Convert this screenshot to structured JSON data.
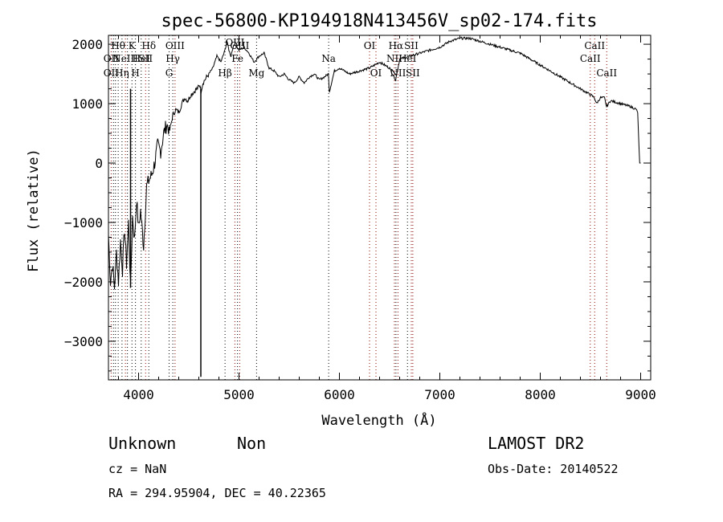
{
  "chart_data": {
    "type": "line",
    "title": "spec-56800-KP194918N413456V_sp02-174.fits",
    "xlabel": "Wavelength (Å)",
    "ylabel": "Flux (relative)",
    "xlim": [
      3700,
      9100
    ],
    "ylim": [
      -3650,
      2150
    ],
    "xticks": [
      4000,
      5000,
      6000,
      7000,
      8000,
      9000
    ],
    "yticks": [
      -3000,
      -2000,
      -1000,
      0,
      1000,
      2000
    ],
    "xtick_labels": [
      "4000",
      "5000",
      "6000",
      "7000",
      "8000",
      "9000"
    ],
    "ytick_labels": [
      "−3000",
      "−2000",
      "−1000",
      "0",
      "1000",
      "2000"
    ],
    "series": [
      {
        "color": "#000000",
        "x": [
          3700,
          3720,
          3740,
          3760,
          3780,
          3800,
          3820,
          3840,
          3860,
          3880,
          3900,
          3920,
          3940,
          3960,
          3980,
          4000,
          4020,
          4050,
          4080,
          4100,
          4130,
          4160,
          4190,
          4220,
          4250,
          4280,
          4310,
          4340,
          4370,
          4400,
          4430,
          4460,
          4490,
          4520,
          4550,
          4580,
          4600,
          4610,
          4615,
          4620,
          4640,
          4660,
          4700,
          4740,
          4780,
          4820,
          4860,
          4880,
          4900,
          4920,
          4940,
          4960,
          4980,
          5000,
          5050,
          5100,
          5150,
          5200,
          5250,
          5300,
          5350,
          5400,
          5450,
          5500,
          5550,
          5600,
          5650,
          5700,
          5750,
          5800,
          5850,
          5890,
          5900,
          5950,
          6000,
          6100,
          6200,
          6300,
          6400,
          6500,
          6560,
          6600,
          6700,
          6800,
          6900,
          7000,
          7100,
          7200,
          7300,
          7400,
          7500,
          7600,
          7700,
          7800,
          7900,
          8000,
          8100,
          8200,
          8300,
          8400,
          8500,
          8540,
          8560,
          8600,
          8640,
          8660,
          8700,
          8800,
          8900,
          8960,
          8970,
          8990,
          9000
        ],
        "y": [
          -1200,
          -2000,
          -1700,
          -2100,
          -1500,
          -2000,
          -1300,
          -1800,
          -1100,
          -1700,
          -1000,
          -2100,
          -900,
          -1300,
          -600,
          -1100,
          -800,
          -1400,
          -400,
          -300,
          -200,
          0,
          300,
          200,
          500,
          650,
          550,
          800,
          900,
          850,
          1000,
          1100,
          1050,
          1150,
          1200,
          1250,
          1280,
          1300,
          1300,
          1200,
          1350,
          1400,
          1500,
          1600,
          1800,
          1700,
          1900,
          2050,
          1900,
          1800,
          1950,
          2000,
          1950,
          1900,
          1950,
          1850,
          1700,
          1800,
          1850,
          1600,
          1550,
          1450,
          1500,
          1400,
          1350,
          1450,
          1350,
          1450,
          1500,
          1400,
          1450,
          1500,
          1200,
          1550,
          1600,
          1500,
          1550,
          1600,
          1700,
          1600,
          1400,
          1750,
          1800,
          1850,
          1900,
          1950,
          2050,
          2100,
          2100,
          2050,
          2000,
          1950,
          1900,
          1850,
          1750,
          1650,
          1550,
          1450,
          1350,
          1250,
          1150,
          1100,
          1000,
          1100,
          1100,
          950,
          1050,
          1000,
          950,
          900,
          850,
          0,
          0
        ]
      }
    ],
    "dips": [
      {
        "x": 4620,
        "y": -3600
      },
      {
        "x": 3920,
        "y": -2100
      }
    ],
    "lines": [
      {
        "x": 3727,
        "color": "#8b0000",
        "labels": [
          {
            "text": "OII",
            "row": 2
          },
          {
            "text": "OII",
            "row": 3
          }
        ]
      },
      {
        "x": 3750,
        "color": "#000000",
        "labels": []
      },
      {
        "x": 3770,
        "color": "#000000",
        "labels": []
      },
      {
        "x": 3797,
        "color": "#000000",
        "labels": [
          {
            "text": "Hθ",
            "row": 1
          }
        ]
      },
      {
        "x": 3835,
        "color": "#000000",
        "labels": [
          {
            "text": "Hη",
            "row": 3
          }
        ]
      },
      {
        "x": 3869,
        "color": "#8b0000",
        "labels": [
          {
            "text": "NeIII",
            "row": 2
          }
        ]
      },
      {
        "x": 3889,
        "color": "#000000",
        "labels": []
      },
      {
        "x": 3934,
        "color": "#000000",
        "labels": [
          {
            "text": "K",
            "row": 1
          }
        ]
      },
      {
        "x": 3969,
        "color": "#000000",
        "labels": [
          {
            "text": "H",
            "row": 3
          }
        ]
      },
      {
        "x": 4026,
        "color": "#000000",
        "labels": [
          {
            "text": "HeI",
            "row": 2
          }
        ]
      },
      {
        "x": 4070,
        "color": "#8b0000",
        "labels": [
          {
            "text": "SII",
            "row": 2
          }
        ]
      },
      {
        "x": 4102,
        "color": "#000000",
        "labels": [
          {
            "text": "Hδ",
            "row": 1
          }
        ]
      },
      {
        "x": 4304,
        "color": "#000000",
        "labels": [
          {
            "text": "G",
            "row": 3
          }
        ]
      },
      {
        "x": 4341,
        "color": "#000000",
        "labels": [
          {
            "text": "Hγ",
            "row": 2
          }
        ]
      },
      {
        "x": 4363,
        "color": "#8b0000",
        "labels": [
          {
            "text": "OIII",
            "row": 1
          }
        ]
      },
      {
        "x": 4861,
        "color": "#000000",
        "labels": [
          {
            "text": "Hβ",
            "row": 3
          }
        ]
      },
      {
        "x": 4959,
        "color": "#8b0000",
        "labels": [
          {
            "text": "OIII",
            "row": 0
          }
        ]
      },
      {
        "x": 4985,
        "color": "#000000",
        "labels": [
          {
            "text": "Fe",
            "row": 2
          }
        ]
      },
      {
        "x": 5007,
        "color": "#8b0000",
        "labels": [
          {
            "text": "OIII",
            "row": 1
          }
        ]
      },
      {
        "x": 5175,
        "color": "#000000",
        "labels": [
          {
            "text": "Mg",
            "row": 3
          }
        ]
      },
      {
        "x": 5893,
        "color": "#000000",
        "labels": [
          {
            "text": "Na",
            "row": 2
          }
        ]
      },
      {
        "x": 6300,
        "color": "#8b0000",
        "labels": [
          {
            "text": "OI",
            "row": 1
          }
        ]
      },
      {
        "x": 6364,
        "color": "#8b0000",
        "labels": [
          {
            "text": "OI",
            "row": 3
          }
        ]
      },
      {
        "x": 6548,
        "color": "#8b0000",
        "labels": [
          {
            "text": "NII",
            "row": 2
          }
        ]
      },
      {
        "x": 6563,
        "color": "#000000",
        "labels": [
          {
            "text": "Hα",
            "row": 1
          }
        ]
      },
      {
        "x": 6583,
        "color": "#8b0000",
        "labels": [
          {
            "text": "NII",
            "row": 3
          }
        ]
      },
      {
        "x": 6678,
        "color": "#000000",
        "labels": [
          {
            "text": "HeI",
            "row": 2
          }
        ]
      },
      {
        "x": 6716,
        "color": "#8b0000",
        "labels": [
          {
            "text": "SII",
            "row": 1
          }
        ]
      },
      {
        "x": 6731,
        "color": "#8b0000",
        "labels": [
          {
            "text": "SII",
            "row": 3
          }
        ]
      },
      {
        "x": 8498,
        "color": "#8b0000",
        "labels": [
          {
            "text": "CaII",
            "row": 2
          }
        ]
      },
      {
        "x": 8542,
        "color": "#8b0000",
        "labels": [
          {
            "text": "CaII",
            "row": 1
          }
        ]
      },
      {
        "x": 8662,
        "color": "#8b0000",
        "labels": [
          {
            "text": "CaII",
            "row": 3
          }
        ]
      }
    ]
  },
  "info": {
    "class_label": "Unknown",
    "subclass_label": "Non",
    "survey": "LAMOST DR2",
    "cz": "cz = NaN",
    "obs_date": "Obs-Date: 20140522",
    "coords": "RA = 294.95904, DEC =  40.22365"
  }
}
